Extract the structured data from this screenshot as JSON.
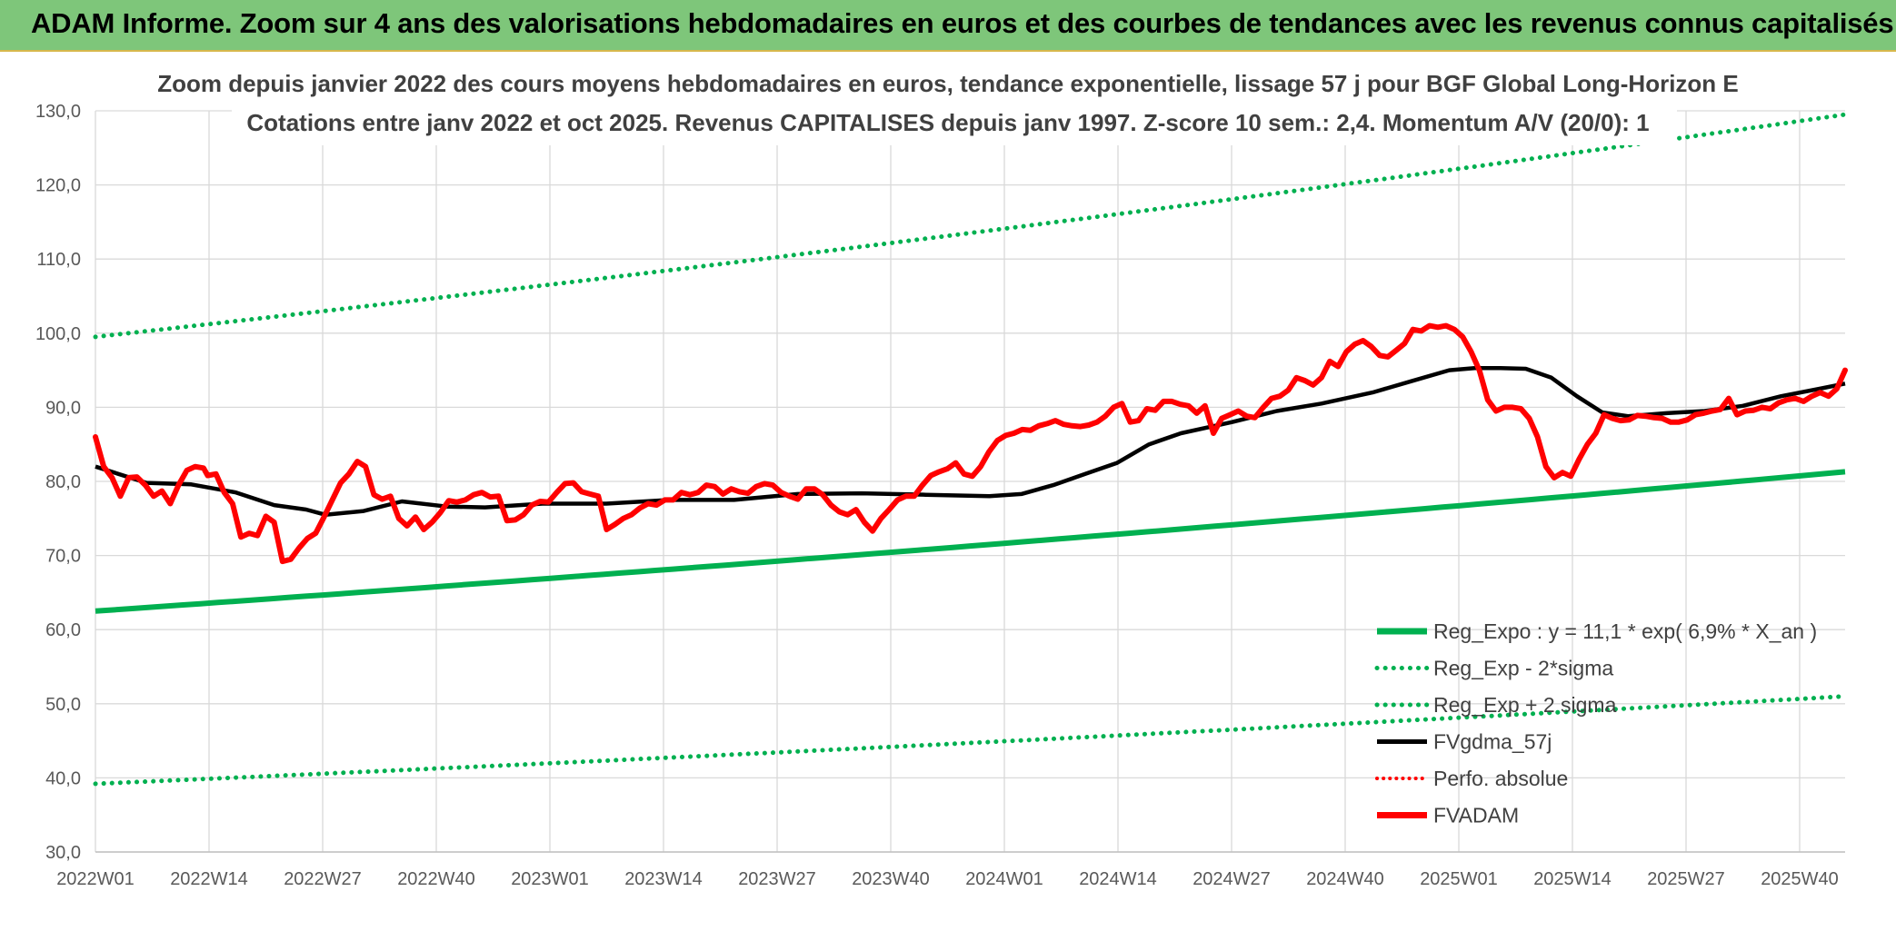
{
  "header": {
    "title": "ADAM Informe. Zoom sur 4 ans des valorisations hebdomadaires en euros et des courbes de tendances avec les revenus connus capitalisés"
  },
  "colors": {
    "banner": "#7ec67a",
    "reg_green": "#00b050",
    "red": "#ff0000",
    "black": "#000000",
    "grid": "#d9d9d9"
  },
  "chart_data": {
    "type": "line",
    "title_line1": "Zoom depuis janvier 2022 des cours moyens hebdomadaires en euros, tendance exponentielle, lissage 57 j pour BGF Global Long-Horizon E",
    "title_line2": "Cotations entre janv 2022 et oct 2025. Revenus CAPITALISES depuis janv 1997. Z-score 10 sem.: 2,4. Momentum A/V (20/0): 1",
    "ylim": [
      30,
      130
    ],
    "yticks": [
      "30,0",
      "40,0",
      "50,0",
      "60,0",
      "70,0",
      "80,0",
      "90,0",
      "100,0",
      "110,0",
      "120,0",
      "130,0"
    ],
    "xticks": [
      "2022W01",
      "2022W14",
      "2022W27",
      "2022W40",
      "2023W01",
      "2023W14",
      "2023W27",
      "2023W40",
      "2024W01",
      "2024W14",
      "2024W27",
      "2024W40",
      "2025W01",
      "2025W14",
      "2025W27",
      "2025W40"
    ],
    "n_weeks": 201,
    "legend": [
      "Reg_Expo : y = 11,1 * exp( 6,9% *  X_an )",
      "Reg_Exp - 2*sigma",
      "Reg_Exp + 2 sigma",
      "FVgdma_57j",
      "Perfo. absolue",
      "FVADAM"
    ],
    "series": [
      {
        "name": "Reg_Expo",
        "style": "solid-green",
        "start": 62.5,
        "end": 81.3
      },
      {
        "name": "Reg_Exp - 2*sigma",
        "style": "dotted-green",
        "start": 39.2,
        "end": 51.0
      },
      {
        "name": "Reg_Exp + 2 sigma",
        "style": "dotted-green",
        "start": 99.5,
        "end": 129.5
      },
      {
        "name": "FVgdma_57j",
        "style": "solid-black",
        "points": [
          [
            0,
            82
          ],
          [
            8,
            79.8
          ],
          [
            15,
            79.6
          ],
          [
            22,
            78.5
          ],
          [
            28,
            76.8
          ],
          [
            33,
            76.2
          ],
          [
            36,
            75.5
          ],
          [
            42,
            76
          ],
          [
            48,
            77.3
          ],
          [
            55,
            76.6
          ],
          [
            61,
            76.5
          ],
          [
            70,
            77
          ],
          [
            80,
            77
          ],
          [
            90,
            77.5
          ],
          [
            100,
            77.5
          ],
          [
            110,
            78.3
          ],
          [
            120,
            78.4
          ],
          [
            130,
            78.2
          ],
          [
            140,
            78
          ],
          [
            145,
            78.3
          ],
          [
            150,
            79.5
          ],
          [
            155,
            81
          ],
          [
            160,
            82.5
          ],
          [
            165,
            85
          ],
          [
            170,
            86.5
          ],
          [
            178,
            88
          ],
          [
            185,
            89.5
          ],
          [
            192,
            90.5
          ],
          [
            200,
            92
          ],
          [
            206,
            93.5
          ],
          [
            212,
            95
          ],
          [
            216,
            95.3
          ],
          [
            220,
            95.3
          ],
          [
            224,
            95.2
          ],
          [
            228,
            94
          ],
          [
            232,
            91.5
          ],
          [
            236,
            89.3
          ],
          [
            240,
            88.8
          ],
          [
            246,
            89.2
          ],
          [
            252,
            89.5
          ],
          [
            258,
            90.2
          ],
          [
            264,
            91.5
          ],
          [
            270,
            92.5
          ],
          [
            274,
            93.2
          ]
        ]
      },
      {
        "name": "Perfo. absolue",
        "style": "dotted-red",
        "points": []
      },
      {
        "name": "FVADAM",
        "style": "solid-red",
        "points": [
          [
            0,
            86
          ],
          [
            2,
            82
          ],
          [
            4,
            80.5
          ],
          [
            6,
            78
          ],
          [
            8,
            80.5
          ],
          [
            10,
            80.6
          ],
          [
            12,
            79.5
          ],
          [
            14,
            78
          ],
          [
            16,
            78.7
          ],
          [
            18,
            77
          ],
          [
            20,
            79.5
          ],
          [
            22,
            81.5
          ],
          [
            24,
            82
          ],
          [
            26,
            81.8
          ],
          [
            27,
            80.8
          ],
          [
            29,
            81
          ],
          [
            31,
            78.5
          ],
          [
            33,
            77
          ],
          [
            35,
            72.5
          ],
          [
            37,
            73
          ],
          [
            39,
            72.7
          ],
          [
            41,
            75.3
          ],
          [
            43,
            74.5
          ],
          [
            45,
            69.2
          ],
          [
            47,
            69.5
          ],
          [
            49,
            71
          ],
          [
            51,
            72.3
          ],
          [
            53,
            73
          ],
          [
            55,
            75.2
          ],
          [
            57,
            77.5
          ],
          [
            59,
            79.8
          ],
          [
            61,
            81
          ],
          [
            63,
            82.7
          ],
          [
            65,
            82
          ],
          [
            67,
            78.2
          ],
          [
            69,
            77.6
          ],
          [
            71,
            78
          ],
          [
            73,
            75
          ],
          [
            75,
            74
          ],
          [
            77,
            75.2
          ],
          [
            79,
            73.5
          ],
          [
            81,
            74.5
          ],
          [
            83,
            75.8
          ],
          [
            85,
            77.4
          ],
          [
            87,
            77.2
          ],
          [
            89,
            77.5
          ],
          [
            91,
            78.2
          ],
          [
            93,
            78.5
          ],
          [
            95,
            77.9
          ],
          [
            97,
            78
          ],
          [
            99,
            74.7
          ],
          [
            101,
            74.8
          ],
          [
            103,
            75.5
          ],
          [
            105,
            76.8
          ],
          [
            107,
            77.3
          ],
          [
            109,
            77.2
          ],
          [
            111,
            78.5
          ],
          [
            113,
            79.7
          ],
          [
            115,
            79.8
          ],
          [
            117,
            78.6
          ],
          [
            119,
            78.3
          ],
          [
            121,
            78
          ],
          [
            123,
            73.5
          ],
          [
            125,
            74.2
          ],
          [
            127,
            75
          ],
          [
            129,
            75.5
          ],
          [
            131,
            76.4
          ],
          [
            133,
            77
          ],
          [
            135,
            76.8
          ],
          [
            137,
            77.5
          ],
          [
            139,
            77.5
          ],
          [
            141,
            78.5
          ],
          [
            143,
            78.2
          ],
          [
            145,
            78.5
          ],
          [
            147,
            79.5
          ],
          [
            149,
            79.3
          ],
          [
            151,
            78.3
          ],
          [
            153,
            79
          ],
          [
            155,
            78.6
          ],
          [
            157,
            78.4
          ],
          [
            159,
            79.3
          ],
          [
            161,
            79.7
          ],
          [
            163,
            79.5
          ],
          [
            165,
            78.5
          ],
          [
            167,
            78
          ],
          [
            169,
            77.6
          ],
          [
            171,
            79
          ],
          [
            173,
            79
          ],
          [
            175,
            78.2
          ],
          [
            177,
            76.8
          ],
          [
            179,
            75.9
          ],
          [
            181,
            75.5
          ],
          [
            183,
            76.2
          ],
          [
            185,
            74.5
          ],
          [
            187,
            73.3
          ],
          [
            189,
            75
          ],
          [
            191,
            76.2
          ],
          [
            193,
            77.5
          ],
          [
            195,
            78
          ],
          [
            197,
            78
          ],
          [
            199,
            79.5
          ],
          [
            201,
            80.8
          ],
          [
            203,
            81.3
          ],
          [
            205,
            81.7
          ],
          [
            207,
            82.5
          ],
          [
            209,
            81
          ],
          [
            211,
            80.7
          ],
          [
            213,
            82
          ],
          [
            215,
            84
          ],
          [
            217,
            85.5
          ],
          [
            219,
            86.2
          ],
          [
            221,
            86.5
          ],
          [
            223,
            87
          ],
          [
            225,
            86.9
          ],
          [
            227,
            87.5
          ],
          [
            229,
            87.8
          ],
          [
            231,
            88.2
          ],
          [
            233,
            87.7
          ],
          [
            235,
            87.5
          ],
          [
            237,
            87.4
          ],
          [
            239,
            87.6
          ],
          [
            241,
            88
          ],
          [
            243,
            88.8
          ],
          [
            245,
            90
          ],
          [
            247,
            90.5
          ],
          [
            249,
            88
          ],
          [
            251,
            88.2
          ],
          [
            253,
            89.8
          ],
          [
            255,
            89.6
          ],
          [
            257,
            90.8
          ],
          [
            259,
            90.8
          ],
          [
            261,
            90.4
          ],
          [
            263,
            90.2
          ],
          [
            265,
            89.2
          ],
          [
            267,
            90.2
          ],
          [
            269,
            86.5
          ],
          [
            271,
            88.5
          ],
          [
            273,
            89
          ],
          [
            275,
            89.5
          ],
          [
            277,
            88.8
          ],
          [
            279,
            88.6
          ],
          [
            281,
            90
          ],
          [
            283,
            91.2
          ],
          [
            285,
            91.5
          ],
          [
            287,
            92.3
          ],
          [
            289,
            94
          ],
          [
            291,
            93.6
          ],
          [
            293,
            93
          ],
          [
            295,
            94
          ],
          [
            297,
            96.2
          ],
          [
            299,
            95.5
          ],
          [
            301,
            97.5
          ],
          [
            303,
            98.5
          ],
          [
            305,
            99
          ],
          [
            307,
            98.2
          ],
          [
            309,
            97
          ],
          [
            311,
            96.8
          ],
          [
            313,
            97.7
          ],
          [
            315,
            98.6
          ],
          [
            317,
            100.5
          ],
          [
            319,
            100.3
          ],
          [
            321,
            101
          ],
          [
            323,
            100.8
          ],
          [
            325,
            101
          ],
          [
            327,
            100.5
          ],
          [
            329,
            99.5
          ],
          [
            331,
            97.5
          ],
          [
            333,
            95
          ],
          [
            335,
            91
          ],
          [
            337,
            89.5
          ],
          [
            339,
            90
          ],
          [
            341,
            90
          ],
          [
            343,
            89.8
          ],
          [
            345,
            88.5
          ],
          [
            347,
            86
          ],
          [
            349,
            82
          ],
          [
            351,
            80.5
          ],
          [
            353,
            81.2
          ],
          [
            355,
            80.7
          ],
          [
            357,
            83
          ],
          [
            359,
            85
          ],
          [
            361,
            86.5
          ],
          [
            363,
            89
          ],
          [
            365,
            88.5
          ],
          [
            367,
            88.2
          ],
          [
            369,
            88.3
          ],
          [
            371,
            88.9
          ],
          [
            373,
            88.8
          ],
          [
            375,
            88.6
          ],
          [
            377,
            88.5
          ],
          [
            379,
            88
          ],
          [
            381,
            88
          ],
          [
            383,
            88.3
          ],
          [
            385,
            89
          ],
          [
            387,
            89.2
          ],
          [
            389,
            89.5
          ],
          [
            391,
            89.7
          ],
          [
            393,
            91.2
          ],
          [
            395,
            89
          ],
          [
            397,
            89.5
          ],
          [
            399,
            89.6
          ],
          [
            401,
            90
          ],
          [
            403,
            89.8
          ],
          [
            405,
            90.6
          ],
          [
            407,
            91
          ],
          [
            409,
            91.2
          ],
          [
            411,
            90.8
          ],
          [
            413,
            91.5
          ],
          [
            415,
            92
          ],
          [
            417,
            91.5
          ],
          [
            419,
            92.5
          ],
          [
            421,
            95
          ]
        ]
      }
    ]
  }
}
